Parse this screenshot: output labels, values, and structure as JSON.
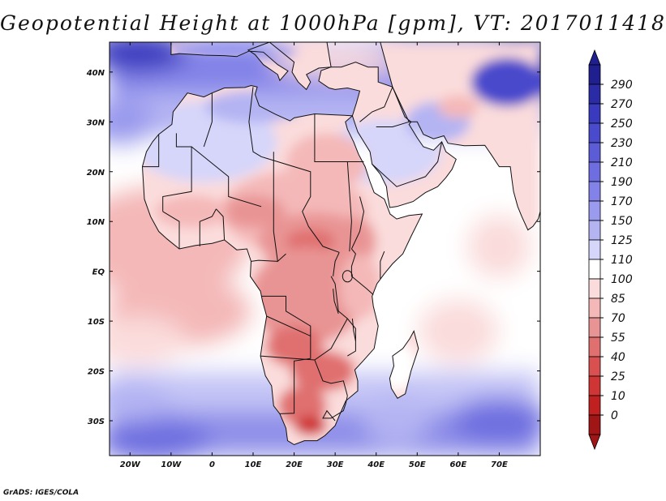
{
  "title": "Geopotential Height at 1000hPa [gpm], VT: 2017011418",
  "credit": "GrADS: IGES/COLA",
  "map": {
    "region": "Africa and Middle East",
    "lon_range": [
      -25,
      80
    ],
    "lat_range": [
      -37,
      46
    ],
    "lon_ticks": [
      {
        "value": -20,
        "label": "20W"
      },
      {
        "value": -10,
        "label": "10W"
      },
      {
        "value": 0,
        "label": "0"
      },
      {
        "value": 10,
        "label": "10E"
      },
      {
        "value": 20,
        "label": "20E"
      },
      {
        "value": 30,
        "label": "30E"
      },
      {
        "value": 40,
        "label": "40E"
      },
      {
        "value": 50,
        "label": "50E"
      },
      {
        "value": 60,
        "label": "60E"
      },
      {
        "value": 70,
        "label": "70E"
      }
    ],
    "lat_ticks": [
      {
        "value": 40,
        "label": "40N"
      },
      {
        "value": 30,
        "label": "30N"
      },
      {
        "value": 20,
        "label": "20N"
      },
      {
        "value": 10,
        "label": "10N"
      },
      {
        "value": 0,
        "label": "EQ"
      },
      {
        "value": -10,
        "label": "10S"
      },
      {
        "value": -20,
        "label": "20S"
      },
      {
        "value": -30,
        "label": "30S"
      }
    ]
  },
  "colorbar": {
    "labels": [
      "290",
      "270",
      "250",
      "230",
      "210",
      "190",
      "170",
      "150",
      "125",
      "110",
      "100",
      "85",
      "70",
      "55",
      "40",
      "25",
      "10",
      "0"
    ],
    "colors_top_to_bottom": [
      "#1f1f8f",
      "#2b2ba6",
      "#3a3abf",
      "#4a4acc",
      "#5c5cd6",
      "#6e6ee0",
      "#8282e8",
      "#9a9aee",
      "#b4b4f3",
      "#d6d6fa",
      "#ffffff",
      "#fbdcdc",
      "#f4b8b8",
      "#e99494",
      "#e07070",
      "#d85050",
      "#cf3535",
      "#c02020",
      "#a01515"
    ]
  }
}
